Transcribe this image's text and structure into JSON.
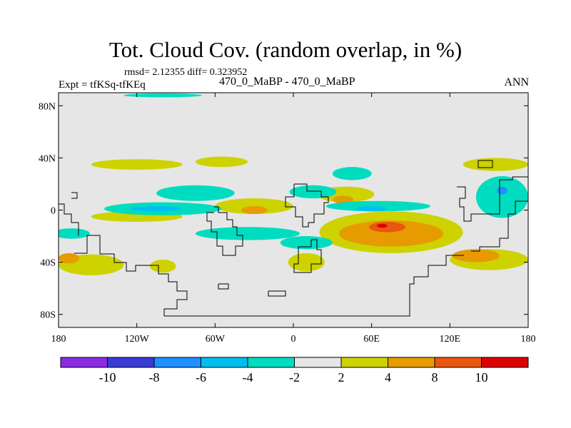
{
  "chart_data": {
    "type": "contour-map",
    "title": "Tot. Cloud Cov. (random overlap, in %)",
    "stats_text": "rmsd= 2.12355 diff= 0.323952",
    "left_label": "Expt = tfKSq-tfKEq",
    "center_label": "470_0_MaBP - 470_0_MaBP",
    "right_label": "ANN",
    "lon_range": [
      -180,
      180
    ],
    "lat_range": [
      -90,
      90
    ],
    "x_ticks": [
      {
        "value": -180,
        "label": "180"
      },
      {
        "value": -120,
        "label": "120W"
      },
      {
        "value": -60,
        "label": "60W"
      },
      {
        "value": 0,
        "label": "0"
      },
      {
        "value": 60,
        "label": "60E"
      },
      {
        "value": 120,
        "label": "120E"
      },
      {
        "value": 180,
        "label": "180"
      }
    ],
    "y_ticks": [
      {
        "value": 80,
        "label": "80N"
      },
      {
        "value": 40,
        "label": "40N"
      },
      {
        "value": 0,
        "label": "0"
      },
      {
        "value": -40,
        "label": "40S"
      },
      {
        "value": -80,
        "label": "80S"
      }
    ],
    "colorbar": {
      "levels": [
        "-10",
        "-8",
        "-6",
        "-4",
        "-2",
        "2",
        "4",
        "8",
        "10"
      ],
      "colors": [
        "#8a2be2",
        "#3a3ad6",
        "#1e90ff",
        "#00bfef",
        "#00dcbf",
        "#e6e6e6",
        "#cdd200",
        "#e69b00",
        "#e8560f",
        "#dd0000"
      ]
    },
    "fill_colors": {
      "zero": "#e6e6e6",
      "plus2": "#cdd200",
      "plus4": "#e69b00",
      "plus8": "#e8560f",
      "plus10": "#dd0000",
      "minus2": "#00dcbf",
      "minus4": "#00bfef",
      "minus6": "#1e90ff"
    },
    "regions": [
      {
        "level": "plus2",
        "lon": -120,
        "lat": 35,
        "rlon": 35,
        "rlat": 4
      },
      {
        "level": "plus2",
        "lon": -55,
        "lat": 37,
        "rlon": 20,
        "rlat": 4
      },
      {
        "level": "plus2",
        "lon": 155,
        "lat": 35,
        "rlon": 25,
        "rlat": 5
      },
      {
        "level": "plus2",
        "lon": -120,
        "lat": -5,
        "rlon": 35,
        "rlat": 4
      },
      {
        "level": "plus2",
        "lon": -30,
        "lat": 3,
        "rlon": 30,
        "rlat": 6
      },
      {
        "level": "plus2",
        "lon": 40,
        "lat": 12,
        "rlon": 22,
        "rlat": 6
      },
      {
        "level": "plus2",
        "lon": 75,
        "lat": -17,
        "rlon": 55,
        "rlat": 16
      },
      {
        "level": "plus2",
        "lon": 150,
        "lat": -38,
        "rlon": 30,
        "rlat": 8
      },
      {
        "level": "plus2",
        "lon": -155,
        "lat": -42,
        "rlon": 25,
        "rlat": 8
      },
      {
        "level": "plus2",
        "lon": -100,
        "lat": -43,
        "rlon": 10,
        "rlat": 5
      },
      {
        "level": "plus2",
        "lon": 10,
        "lat": -40,
        "rlon": 14,
        "rlat": 7
      },
      {
        "level": "plus4",
        "lon": 75,
        "lat": -18,
        "rlon": 40,
        "rlat": 10
      },
      {
        "level": "plus4",
        "lon": 140,
        "lat": -35,
        "rlon": 18,
        "rlat": 5
      },
      {
        "level": "plus4",
        "lon": -172,
        "lat": -37,
        "rlon": 8,
        "rlat": 4
      },
      {
        "level": "plus4",
        "lon": -30,
        "lat": 0,
        "rlon": 10,
        "rlat": 3
      },
      {
        "level": "plus4",
        "lon": 38,
        "lat": 8,
        "rlon": 8,
        "rlat": 3
      },
      {
        "level": "plus8",
        "lon": 72,
        "lat": -13,
        "rlon": 14,
        "rlat": 4
      },
      {
        "level": "plus10",
        "lon": 68,
        "lat": -12,
        "rlon": 4,
        "rlat": 1.5
      },
      {
        "level": "minus2",
        "lon": -75,
        "lat": 13,
        "rlon": 30,
        "rlat": 6
      },
      {
        "level": "minus2",
        "lon": -100,
        "lat": 1,
        "rlon": 45,
        "rlat": 5
      },
      {
        "level": "minus2",
        "lon": 15,
        "lat": 14,
        "rlon": 18,
        "rlat": 5
      },
      {
        "level": "minus2",
        "lon": 45,
        "lat": 28,
        "rlon": 15,
        "rlat": 5
      },
      {
        "level": "minus2",
        "lon": -35,
        "lat": -18,
        "rlon": 40,
        "rlat": 5
      },
      {
        "level": "minus2",
        "lon": 10,
        "lat": -25,
        "rlon": 20,
        "rlat": 5
      },
      {
        "level": "minus2",
        "lon": 65,
        "lat": 3,
        "rlon": 40,
        "rlat": 4
      },
      {
        "level": "minus2",
        "lon": -170,
        "lat": -18,
        "rlon": 14,
        "rlat": 4
      },
      {
        "level": "minus2",
        "lon": 160,
        "lat": 10,
        "rlon": 20,
        "rlat": 16
      },
      {
        "level": "minus2",
        "lon": -100,
        "lat": 88,
        "rlon": 30,
        "rlat": 1.5
      },
      {
        "level": "minus4",
        "lon": -105,
        "lat": 1,
        "rlon": 20,
        "rlat": 2
      },
      {
        "level": "minus4",
        "lon": 60,
        "lat": 1,
        "rlon": 12,
        "rlat": 2
      },
      {
        "level": "minus6",
        "lon": 160,
        "lat": 15,
        "rlon": 4,
        "rlat": 3
      }
    ]
  }
}
